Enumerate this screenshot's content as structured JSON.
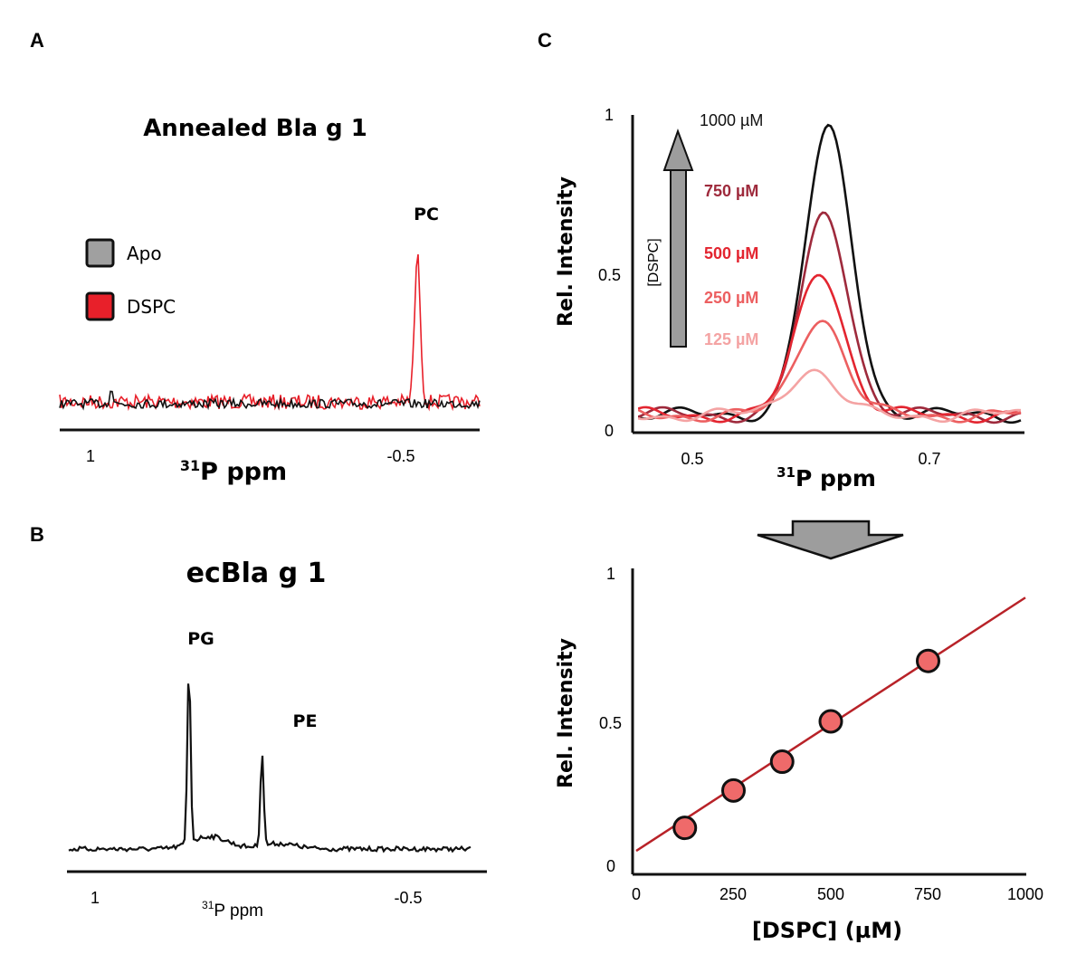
{
  "panels": {
    "a": {
      "label": "A",
      "title": "Annealed Bla g 1",
      "legend": [
        {
          "name": "Apo",
          "color": "#a0a0a0"
        },
        {
          "name": "DSPC",
          "color": "#e8202a"
        }
      ],
      "peak_label": "PC",
      "xlabel_iso": "31",
      "xlabel_main": "P ppm",
      "ticks": [
        "1",
        "-0.5"
      ]
    },
    "b": {
      "label": "B",
      "title": "ecBla g 1",
      "peak_labels": [
        "PG",
        "PE"
      ],
      "xlabel_iso": "31",
      "xlabel_main": "P ppm",
      "ticks": [
        "1",
        "-0.5"
      ]
    },
    "c": {
      "label": "C",
      "arrow_label": "[DSPC]",
      "ylabel": "Rel. Intensity",
      "xlabel_iso": "31",
      "xlabel_main": "P ppm",
      "yticks": [
        "1",
        "0.5",
        "0"
      ],
      "xticks": [
        "0.5",
        "0.7"
      ],
      "series_labels": [
        "1000 µM",
        "750 µM",
        "500 µM",
        "250 µM",
        "125 µM"
      ],
      "colors": [
        "#111111",
        "#9e2a3c",
        "#e32530",
        "#ec5f60",
        "#f4a3a3"
      ]
    },
    "d": {
      "ylabel": "Rel. Intensity",
      "xlabel": "[DSPC] (µM)",
      "yticks": [
        "1",
        "0.5",
        "0"
      ],
      "xticks": [
        "0",
        "250",
        "500",
        "750",
        "1000"
      ]
    }
  },
  "chart_data": [
    {
      "type": "line",
      "title": "Annealed Bla g 1",
      "xlabel": "31P ppm",
      "x_ticks": [
        1,
        -0.5
      ],
      "series": [
        {
          "name": "Apo",
          "peaks": [
            {
              "ppm": 0.9,
              "intensity": 0.12
            }
          ]
        },
        {
          "name": "DSPC",
          "peaks": [
            {
              "ppm": -0.58,
              "intensity": 1.0,
              "label": "PC"
            }
          ]
        }
      ]
    },
    {
      "type": "line",
      "title": "ecBla g 1",
      "xlabel": "31P ppm",
      "x_ticks": [
        1,
        -0.5
      ],
      "series": [
        {
          "name": "ecBla g 1",
          "peaks": [
            {
              "ppm": 0.55,
              "intensity": 1.0,
              "label": "PG"
            },
            {
              "ppm": 0.2,
              "intensity": 0.53,
              "label": "PE"
            }
          ]
        }
      ]
    },
    {
      "type": "line",
      "ylabel": "Rel. Intensity",
      "xlabel": "31P ppm",
      "xlim": [
        0.46,
        0.77
      ],
      "ylim": [
        0,
        1
      ],
      "x_ticks": [
        0.5,
        0.7
      ],
      "y_ticks": [
        0,
        0.5,
        1
      ],
      "series": [
        {
          "name": "1000 µM",
          "peak_ppm": 0.615,
          "peak_intensity": 0.96
        },
        {
          "name": "750 µM",
          "peak_ppm": 0.612,
          "peak_intensity": 0.69
        },
        {
          "name": "500 µM",
          "peak_ppm": 0.608,
          "peak_intensity": 0.51
        },
        {
          "name": "250 µM",
          "peak_ppm": 0.608,
          "peak_intensity": 0.36
        },
        {
          "name": "125 µM",
          "peak_ppm": 0.6,
          "peak_intensity": 0.19
        }
      ]
    },
    {
      "type": "scatter",
      "xlabel": "[DSPC] (µM)",
      "ylabel": "Rel. Intensity",
      "xlim": [
        0,
        1000
      ],
      "ylim": [
        0,
        1
      ],
      "x_ticks": [
        0,
        250,
        500,
        750,
        1000
      ],
      "y_ticks": [
        0,
        0.5,
        1
      ],
      "x": [
        125,
        250,
        375,
        500,
        750
      ],
      "y": [
        0.13,
        0.26,
        0.36,
        0.5,
        0.71
      ],
      "fit_line": {
        "x": [
          0,
          1000
        ],
        "y": [
          0.05,
          0.93
        ],
        "color": "#b82228"
      },
      "marker_color": "#ef6a6a"
    }
  ]
}
